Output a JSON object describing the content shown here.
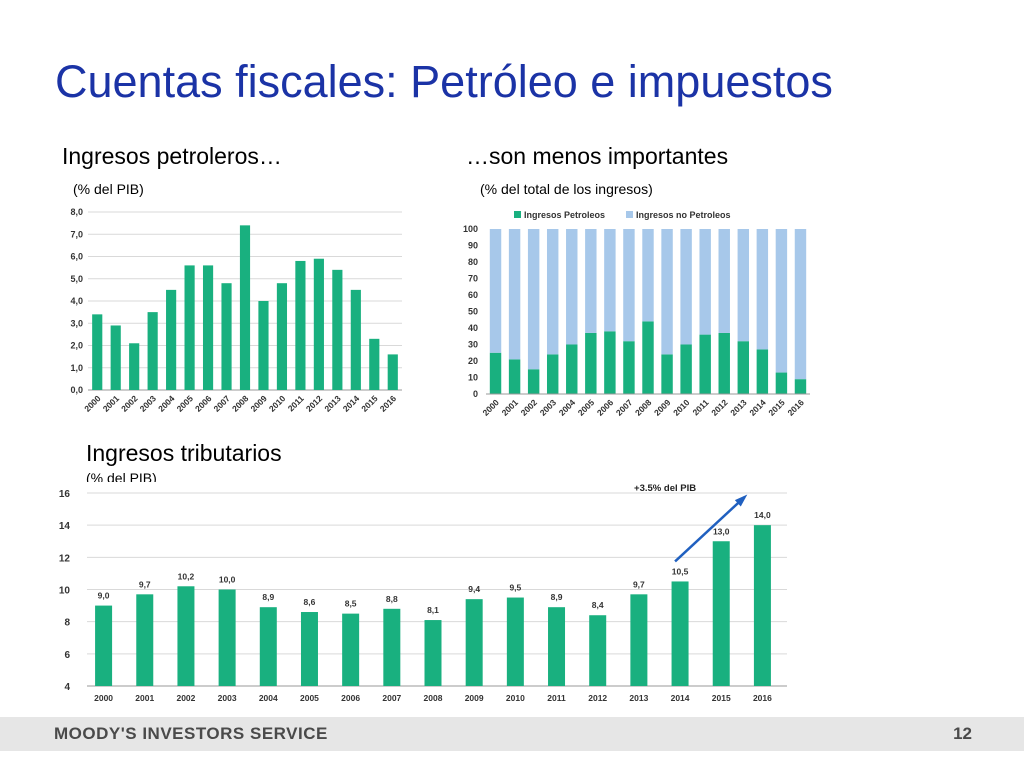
{
  "slide": {
    "title": "Cuentas fiscales: Petróleo e impuestos",
    "footer_left": "MOODY'S INVESTORS SERVICE",
    "page_number": "12"
  },
  "sections": {
    "oil_heading": "Ingresos petroleros…",
    "oil_sub": "(% del PIB)",
    "share_heading": "…son menos importantes",
    "share_sub": "(% del total de los ingresos)",
    "tax_heading": "Ingresos tributarios",
    "tax_sub": "(% del PIB)"
  },
  "colors": {
    "green": "#19b07f",
    "lightblue": "#a7c8ea",
    "arrow": "#2060c0"
  },
  "chart_data": [
    {
      "id": "oil",
      "type": "bar",
      "categories": [
        "2000",
        "2001",
        "2002",
        "2003",
        "2004",
        "2005",
        "2006",
        "2007",
        "2008",
        "2009",
        "2010",
        "2011",
        "2012",
        "2013",
        "2014",
        "2015",
        "2016"
      ],
      "values": [
        3.4,
        2.9,
        2.1,
        3.5,
        4.5,
        5.6,
        5.6,
        4.8,
        7.4,
        4.0,
        4.8,
        5.8,
        5.9,
        5.4,
        4.5,
        2.3,
        1.6
      ],
      "ylim": [
        0,
        8
      ],
      "yticks": [
        "0,0",
        "1,0",
        "2,0",
        "3,0",
        "4,0",
        "5,0",
        "6,0",
        "7,0",
        "8,0"
      ],
      "grid": true
    },
    {
      "id": "share",
      "type": "bar",
      "stacked": true,
      "categories": [
        "2000",
        "2001",
        "2002",
        "2003",
        "2004",
        "2005",
        "2006",
        "2007",
        "2008",
        "2009",
        "2010",
        "2011",
        "2012",
        "2013",
        "2014",
        "2015",
        "2016"
      ],
      "series": [
        {
          "name": "Ingresos Petroleos",
          "values": [
            25,
            21,
            15,
            24,
            30,
            37,
            38,
            32,
            44,
            24,
            30,
            36,
            37,
            32,
            27,
            13,
            9
          ]
        },
        {
          "name": "Ingresos no Petroleos",
          "values": [
            75,
            79,
            85,
            76,
            70,
            63,
            62,
            68,
            56,
            76,
            70,
            64,
            63,
            68,
            73,
            87,
            91
          ]
        }
      ],
      "ylim": [
        0,
        100
      ],
      "yticks": [
        "0",
        "10",
        "20",
        "30",
        "40",
        "50",
        "60",
        "70",
        "80",
        "90",
        "100"
      ],
      "legend": "top"
    },
    {
      "id": "tax",
      "type": "bar",
      "categories": [
        "2000",
        "2001",
        "2002",
        "2003",
        "2004",
        "2005",
        "2006",
        "2007",
        "2008",
        "2009",
        "2010",
        "2011",
        "2012",
        "2013",
        "2014",
        "2015",
        "2016"
      ],
      "values": [
        9.0,
        9.7,
        10.2,
        10.0,
        8.9,
        8.6,
        8.5,
        8.8,
        8.1,
        9.4,
        9.5,
        8.9,
        8.4,
        9.7,
        10.5,
        13.0,
        14.0
      ],
      "data_labels": [
        "9,0",
        "9,7",
        "10,2",
        "10,0",
        "8,9",
        "8,6",
        "8,5",
        "8,8",
        "8,1",
        "9,4",
        "9,5",
        "8,9",
        "8,4",
        "9,7",
        "10,5",
        "13,0",
        "14,0"
      ],
      "ylim": [
        4,
        16
      ],
      "yticks": [
        "4",
        "6",
        "8",
        "10",
        "12",
        "14",
        "16"
      ],
      "grid": true,
      "annotation": "+3.5% del PIB"
    }
  ]
}
